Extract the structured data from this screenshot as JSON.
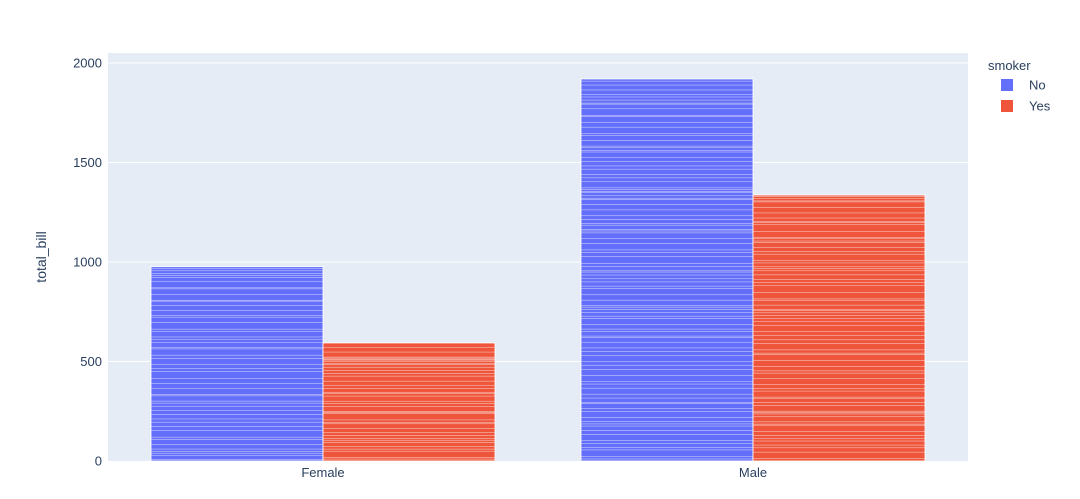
{
  "chart_data": {
    "type": "bar",
    "barmode": "group",
    "categories": [
      "Female",
      "Male"
    ],
    "series": [
      {
        "name": "No",
        "values": [
          977.68,
          1919.75
        ],
        "color": "#636efa"
      },
      {
        "name": "Yes",
        "values": [
          593.27,
          1337.07
        ],
        "color": "#ef553b"
      }
    ],
    "xlabel": "",
    "ylabel": "total_bill",
    "ylim": [
      0,
      2050
    ],
    "yticks": [
      0,
      500,
      1000,
      1500,
      2000
    ],
    "ytick_labels": [
      "0",
      "500",
      "1000",
      "1500",
      "2000"
    ],
    "grid": true,
    "legend": {
      "title": "smoker",
      "placement": "right"
    },
    "plot_background": "#e5ecf6",
    "bar_style": "stacked thin white-outlined segments (one per record)"
  }
}
